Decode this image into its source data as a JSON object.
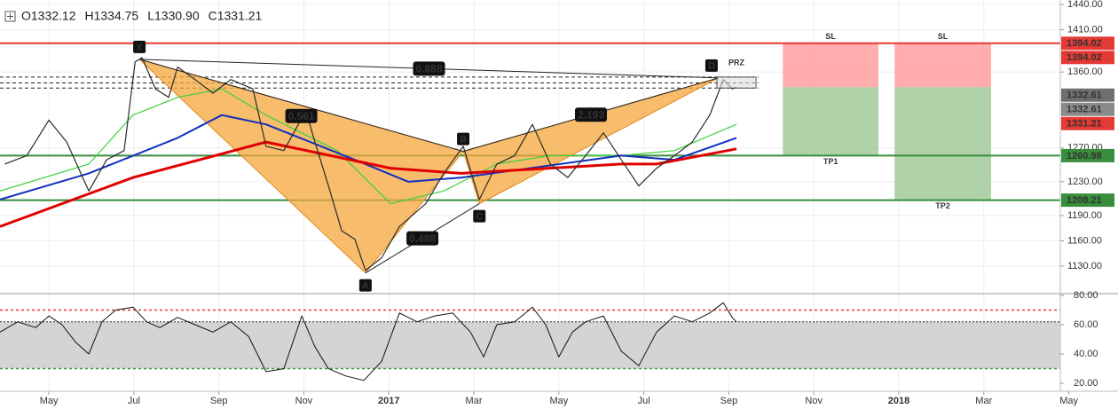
{
  "chart_data": {
    "type": "line",
    "header": [
      "O1332.12",
      "H1334.75",
      "L1330.90",
      "C1331.21"
    ],
    "xlim": [
      -1.15,
      23.8
    ],
    "ylim": [
      1098.5,
      1445.3
    ],
    "grid": true,
    "xticks": [
      {
        "value": 0,
        "label": "May"
      },
      {
        "value": 2,
        "label": "Jul"
      },
      {
        "value": 4,
        "label": "Sep"
      },
      {
        "value": 6,
        "label": "Nov"
      },
      {
        "value": 8,
        "label": "2017"
      },
      {
        "value": 10,
        "label": "Mar"
      },
      {
        "value": 12,
        "label": "May"
      },
      {
        "value": 14,
        "label": "Jul"
      },
      {
        "value": 16,
        "label": "Sep"
      },
      {
        "value": 18,
        "label": "Nov"
      },
      {
        "value": 20,
        "label": "2018"
      },
      {
        "value": 22,
        "label": "Mar"
      },
      {
        "value": 24,
        "label": "May"
      }
    ],
    "yticks": [
      {
        "value": 1440,
        "label": "1440.00"
      },
      {
        "value": 1410,
        "label": "1410.00"
      },
      {
        "value": 1360,
        "label": "1360.00"
      },
      {
        "value": 1270,
        "label": "1270.00"
      },
      {
        "value": 1230,
        "label": "1230.00"
      },
      {
        "value": 1190,
        "label": "1190.00"
      },
      {
        "value": 1160,
        "label": "1160.00"
      },
      {
        "value": 1130,
        "label": "1130.00"
      }
    ],
    "series": [
      {
        "color": "#2b2b2b",
        "width": 1.2,
        "x": [
          -1.04,
          -0.52,
          0,
          0.42,
          0.94,
          1.36,
          1.77,
          2.03,
          2.19,
          2.51,
          2.82,
          3.03,
          3.44,
          3.86,
          4.28,
          4.8,
          5.11,
          5.53,
          6.05,
          6.26,
          6.58,
          6.89,
          7.2,
          7.45,
          7.83,
          8.25,
          8.87,
          9.29,
          9.75,
          10.13,
          10.54,
          10.96,
          11.38,
          11.8,
          12.21,
          12.63,
          13.05,
          13.47,
          13.88,
          14.3,
          14.72,
          15.14,
          15.55,
          15.87,
          16.08,
          16.18
        ],
        "values": [
          1251,
          1261,
          1303,
          1277,
          1219,
          1256,
          1267,
          1372,
          1377,
          1340,
          1330,
          1366,
          1351,
          1335,
          1351,
          1340,
          1272,
          1267,
          1314,
          1277,
          1225,
          1172,
          1162,
          1125,
          1140,
          1177,
          1204,
          1240,
          1272,
          1209,
          1251,
          1261,
          1298,
          1251,
          1235,
          1261,
          1288,
          1256,
          1225,
          1246,
          1261,
          1277,
          1309,
          1351,
          1340,
          1342
        ]
      },
      {
        "color": "#e00000",
        "width": 3,
        "x": [
          -1.15,
          1.98,
          5.11,
          8.04,
          9.71,
          13.47,
          14.3,
          16.18
        ],
        "values": [
          1177,
          1235,
          1277,
          1246,
          1240,
          1251,
          1251,
          1269
        ]
      },
      {
        "color": "#1030c0",
        "width": 2,
        "x": [
          -1.15,
          0.94,
          3.03,
          4.07,
          5.11,
          7.2,
          8.46,
          9.71,
          13.47,
          14.72,
          16.18
        ],
        "values": [
          1209,
          1240,
          1282,
          1309,
          1298,
          1256,
          1230,
          1235,
          1261,
          1256,
          1282
        ]
      },
      {
        "color": "#3ad13a",
        "width": 1.2,
        "x": [
          -1.15,
          0.94,
          1.98,
          3.03,
          4.07,
          5.11,
          6.78,
          8.04,
          9.29,
          10.54,
          11.8,
          13.47,
          14.72,
          16.18
        ],
        "values": [
          1219,
          1251,
          1309,
          1330,
          1340,
          1309,
          1267,
          1204,
          1219,
          1251,
          1261,
          1261,
          1267,
          1298
        ]
      }
    ],
    "pattern": {
      "color": "#f5a53c",
      "points": [
        {
          "label": "X",
          "x": 2.13,
          "y": 1375
        },
        {
          "label": "A",
          "x": 7.45,
          "y": 1122
        },
        {
          "label": "B",
          "x": 9.75,
          "y": 1266
        },
        {
          "label": "C",
          "x": 10.13,
          "y": 1204
        },
        {
          "label": "D",
          "x": 15.76,
          "y": 1353
        }
      ],
      "ratios": [
        0.888,
        0.561,
        0.488,
        2.193
      ]
    },
    "prz": {
      "label": "PRZ",
      "x": [
        15.72,
        16.64
      ],
      "y": [
        1341,
        1354
      ]
    },
    "levels": [
      {
        "value": 1394.02,
        "color": "#e53935"
      },
      {
        "value": 1260.98,
        "color": "#388e3c"
      },
      {
        "value": 1208.21,
        "color": "#388e3c"
      }
    ],
    "dashed_levels": [
      1354,
      1347,
      1341
    ],
    "trades": [
      {
        "x": [
          17.27,
          19.52
        ],
        "entry": 1342,
        "stop": 1394.02,
        "target": 1260.98,
        "stop_label": "SL",
        "target_label": "TP1"
      },
      {
        "x": [
          19.9,
          22.17
        ],
        "entry": 1342,
        "stop": 1394.02,
        "target": 1208.21,
        "stop_label": "SL",
        "target_label": "TP2"
      }
    ],
    "price_tags": [
      {
        "value": 1394.02,
        "color": "#e53935"
      },
      {
        "value": 1394.02,
        "color": "#e53935"
      },
      {
        "value": 1332.61,
        "color": "#6f6f6f"
      },
      {
        "value": 1332.61,
        "color": "#8a8a8a"
      },
      {
        "value": 1331.21,
        "color": "#e53935"
      },
      {
        "value": 1260.98,
        "color": "#388e3c"
      },
      {
        "value": 1208.21,
        "color": "#388e3c"
      }
    ],
    "rsi": {
      "ylim": [
        15.2,
        80.6
      ],
      "yticks": [
        {
          "value": 80,
          "label": "80.00"
        },
        {
          "value": 60,
          "label": "60.00"
        },
        {
          "value": 40,
          "label": "40.00"
        },
        {
          "value": 20,
          "label": "20.00"
        }
      ],
      "levels": [
        {
          "value": 70,
          "color": "#e53935"
        },
        {
          "value": 30,
          "color": "#2e9d2e"
        }
      ],
      "band": [
        30,
        62
      ],
      "x": [
        -1.15,
        -0.73,
        -0.31,
        0,
        0.31,
        0.63,
        0.94,
        1.25,
        1.57,
        1.98,
        2.3,
        2.61,
        3.03,
        3.44,
        3.86,
        4.28,
        4.7,
        5.11,
        5.53,
        5.95,
        6.26,
        6.58,
        6.99,
        7.41,
        7.83,
        8.25,
        8.66,
        9.08,
        9.5,
        9.92,
        10.23,
        10.54,
        10.96,
        11.38,
        11.69,
        12.0,
        12.32,
        12.63,
        13.05,
        13.47,
        13.88,
        14.3,
        14.72,
        15.14,
        15.55,
        15.87,
        16.08,
        16.18
      ],
      "values": [
        55,
        62,
        58,
        66,
        60,
        48,
        40,
        62,
        70,
        72,
        62,
        58,
        65,
        60,
        55,
        62,
        52,
        28,
        30,
        66,
        45,
        30,
        25,
        22,
        35,
        68,
        62,
        66,
        68,
        55,
        38,
        60,
        62,
        72,
        60,
        38,
        55,
        62,
        66,
        42,
        32,
        55,
        66,
        62,
        68,
        75,
        65,
        62
      ]
    }
  }
}
